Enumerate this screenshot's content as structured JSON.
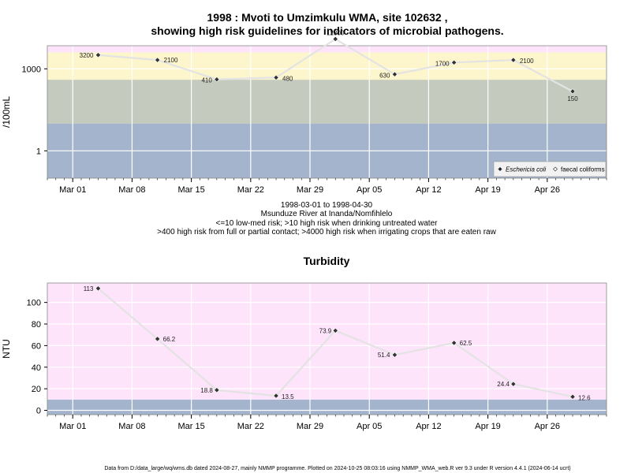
{
  "micro": {
    "title_line1": "1998 : Mvoti to Umzimkulu WMA, site 102632 ,",
    "title_line2": "showing high risk guidelines for indicators of microbial pathogens.",
    "caption": [
      "1998-03-01 to 1998-04-30",
      "Msunduze River at Inanda/Nomfihlelo",
      "<=10 low-med risk; >10 high risk when drinking untreated water",
      ">400 high risk from full or partial contact; >4000 high risk when irrigating crops that are eaten raw"
    ],
    "legend": [
      "Eschericia coli",
      "faecal coliforms"
    ]
  },
  "turbidity": {
    "title": "Turbidity"
  },
  "footer": "Data from D:/data_large/wq/wms.db dated 2024-08-27, mainly NMMP programme. Plotted on 2024-10-25 08:03:16 using NMMP_WMA_web.R ver 9.3 under R version 4.4.1 (2024-06-14 ucrt)",
  "colors": {
    "band_low": "#a3b4cc",
    "band_mid": "#c4cbbe",
    "band_high": "#fdf6cc",
    "band_top": "#fde4fb",
    "line": "#e3e3e3",
    "point": "#333333"
  },
  "chart_data": [
    {
      "type": "line",
      "title": "1998 : Mvoti to Umzimkulu WMA, site 102632 , showing high risk guidelines for indicators of microbial pathogens.",
      "ylabel": "/100mL",
      "yscale": "log",
      "ylim": [
        0.1,
        7000
      ],
      "xlim": [
        "1998-02-26",
        "1998-05-03"
      ],
      "x_ticks": [
        "Mar 01",
        "Mar 08",
        "Mar 15",
        "Mar 22",
        "Mar 29",
        "Apr 05",
        "Apr 12",
        "Apr 19",
        "Apr 26"
      ],
      "x_tick_dates": [
        "1998-03-01",
        "1998-03-08",
        "1998-03-15",
        "1998-03-22",
        "1998-03-29",
        "1998-04-05",
        "1998-04-12",
        "1998-04-19",
        "1998-04-26"
      ],
      "y_ticks": [
        1,
        1000
      ],
      "y_tick_labels": [
        "1",
        "1000"
      ],
      "bands": [
        {
          "from": 0.1,
          "to": 10,
          "color": "#a3b4cc"
        },
        {
          "from": 10,
          "to": 400,
          "color": "#c4cbbe"
        },
        {
          "from": 400,
          "to": 4000,
          "color": "#fdf6cc"
        },
        {
          "from": 4000,
          "to": 7000,
          "color": "#fde4fb"
        }
      ],
      "grid": true,
      "legend_position": "bottom-right",
      "series": [
        {
          "name": "Eschericia coli",
          "x": [
            "1998-03-04",
            "1998-03-11",
            "1998-03-18",
            "1998-03-25",
            "1998-04-01",
            "1998-04-08",
            "1998-04-15",
            "1998-04-22",
            "1998-04-29"
          ],
          "y": [
            3200,
            2100,
            410,
            480,
            12300,
            630,
            1700,
            2100,
            150
          ],
          "labels": [
            "3200",
            "2100",
            "410",
            "480",
            "12300",
            "630",
            "1700",
            "2100",
            "150"
          ]
        },
        {
          "name": "faecal coliforms",
          "x": [],
          "y": []
        }
      ]
    },
    {
      "type": "line",
      "title": "Turbidity",
      "ylabel": "NTU",
      "ylim": [
        -4,
        118
      ],
      "xlim": [
        "1998-02-26",
        "1998-05-03"
      ],
      "x_ticks": [
        "Mar 01",
        "Mar 08",
        "Mar 15",
        "Mar 22",
        "Mar 29",
        "Apr 05",
        "Apr 12",
        "Apr 19",
        "Apr 26"
      ],
      "x_tick_dates": [
        "1998-03-01",
        "1998-03-08",
        "1998-03-15",
        "1998-03-22",
        "1998-03-29",
        "1998-04-05",
        "1998-04-12",
        "1998-04-19",
        "1998-04-26"
      ],
      "y_ticks": [
        0,
        20,
        40,
        60,
        80,
        100
      ],
      "bands": [
        {
          "from": -4,
          "to": 10,
          "color": "#a3b4cc"
        },
        {
          "from": 10,
          "to": 118,
          "color": "#fde4fb"
        }
      ],
      "grid": true,
      "series": [
        {
          "x": [
            "1998-03-04",
            "1998-03-11",
            "1998-03-18",
            "1998-03-25",
            "1998-04-01",
            "1998-04-08",
            "1998-04-15",
            "1998-04-22",
            "1998-04-29"
          ],
          "y": [
            113,
            66.2,
            18.8,
            13.5,
            73.9,
            51.4,
            62.5,
            24.4,
            12.6
          ],
          "labels": [
            "113",
            "66.2",
            "18.8",
            "13.5",
            "73.9",
            "51.4",
            "62.5",
            "24.4",
            "12.6"
          ]
        }
      ]
    }
  ]
}
